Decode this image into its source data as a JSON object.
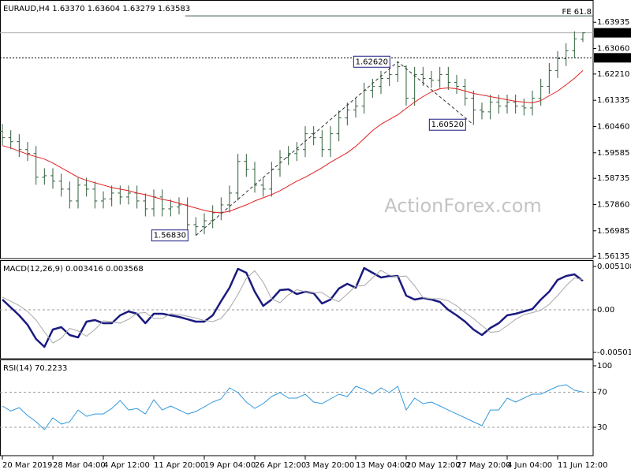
{
  "chart_data": [
    {
      "type": "ohlc",
      "title": "EURAUD,H4  1.63370 1.63604 1.63279 1.63583",
      "watermark": "ActionForex.com",
      "color": "#2f5f3a",
      "categories": [
        "20 Mar 2019",
        null,
        null,
        null,
        null,
        null,
        "28 Mar 04:00",
        null,
        null,
        null,
        null,
        null,
        "4 Apr 12:00",
        null,
        null,
        null,
        null,
        null,
        "11 Apr 20:00",
        null,
        null,
        null,
        null,
        null,
        "19 Apr 04:00",
        null,
        null,
        null,
        null,
        null,
        "26 Apr 12:00",
        null,
        null,
        null,
        null,
        null,
        "3 May 20:00",
        null,
        null,
        null,
        null,
        null,
        "13 May 04:00",
        null,
        null,
        null,
        null,
        null,
        "20 May 12:00",
        null,
        null,
        null,
        null,
        null,
        "27 May 20:00",
        null,
        null,
        null,
        null,
        null,
        "4 Jun 04:00",
        null,
        null,
        null,
        null,
        null,
        "11 Jun 12:00",
        null,
        null,
        null
      ],
      "open": [
        1.603,
        1.60088,
        1.59956,
        1.59693,
        1.59561,
        1.5877,
        1.5882,
        1.58639,
        1.58375,
        1.5798,
        1.58507,
        1.58375,
        1.5798,
        1.5805,
        1.58243,
        1.58112,
        1.58243,
        1.5798,
        1.57716,
        1.58112,
        1.57716,
        1.5778,
        1.57848,
        1.57189,
        1.5712,
        1.57321,
        1.57585,
        1.57848,
        1.58243,
        1.59297,
        1.59034,
        1.58507,
        1.58375,
        1.59034,
        1.59429,
        1.59561,
        1.59693,
        1.6022,
        1.60088,
        1.59693,
        1.6022,
        1.60747,
        1.6101,
        1.61142,
        1.61669,
        1.61801,
        1.62064,
        1.62196,
        1.62459,
        1.61405,
        1.62196,
        1.62064,
        1.62,
        1.62196,
        1.61932,
        1.61801,
        1.61405,
        1.6101,
        1.6095,
        1.61274,
        1.61142,
        1.61274,
        1.61142,
        1.6108,
        1.61405,
        1.61801,
        1.62328,
        1.62723,
        1.62986,
        1.6337
      ],
      "high": [
        1.6055,
        1.60338,
        1.60206,
        1.59943,
        1.59811,
        1.5907,
        1.5907,
        1.58889,
        1.58625,
        1.58757,
        1.58757,
        1.58625,
        1.583,
        1.58493,
        1.58493,
        1.58493,
        1.58493,
        1.5823,
        1.58362,
        1.58362,
        1.5803,
        1.58098,
        1.58098,
        1.57439,
        1.57571,
        1.57835,
        1.58098,
        1.58493,
        1.59547,
        1.59547,
        1.59284,
        1.58757,
        1.59284,
        1.59679,
        1.59811,
        1.59943,
        1.6047,
        1.6047,
        1.60338,
        1.6047,
        1.60997,
        1.6126,
        1.61392,
        1.61919,
        1.62051,
        1.62314,
        1.62446,
        1.6262,
        1.625,
        1.62446,
        1.62446,
        1.62314,
        1.62446,
        1.62446,
        1.62182,
        1.62051,
        1.61655,
        1.6126,
        1.61524,
        1.61524,
        1.61524,
        1.61524,
        1.61392,
        1.61655,
        1.62051,
        1.62578,
        1.62973,
        1.63236,
        1.63632,
        1.63604
      ],
      "low": [
        1.59838,
        1.59706,
        1.59443,
        1.59311,
        1.5852,
        1.5852,
        1.58389,
        1.58125,
        1.5773,
        1.5773,
        1.58125,
        1.5773,
        1.5773,
        1.578,
        1.57862,
        1.57862,
        1.5773,
        1.57466,
        1.57466,
        1.57466,
        1.57466,
        1.5753,
        1.56939,
        1.5683,
        1.5687,
        1.57071,
        1.57335,
        1.57598,
        1.57993,
        1.58784,
        1.58257,
        1.58125,
        1.58125,
        1.58784,
        1.59179,
        1.59311,
        1.59443,
        1.59838,
        1.59443,
        1.59443,
        1.5997,
        1.60497,
        1.6076,
        1.60892,
        1.61419,
        1.61551,
        1.61814,
        1.61946,
        1.61155,
        1.61155,
        1.61814,
        1.6175,
        1.6175,
        1.61682,
        1.61551,
        1.61155,
        1.6052,
        1.607,
        1.607,
        1.60892,
        1.60892,
        1.60892,
        1.6083,
        1.6083,
        1.61155,
        1.61551,
        1.62078,
        1.62473,
        1.62736,
        1.63279
      ],
      "close": [
        1.60088,
        1.59956,
        1.59693,
        1.59561,
        1.5877,
        1.5882,
        1.58639,
        1.58375,
        1.5798,
        1.58507,
        1.58375,
        1.5798,
        1.5805,
        1.58243,
        1.58112,
        1.58243,
        1.5798,
        1.57716,
        1.58112,
        1.57716,
        1.5778,
        1.57848,
        1.57189,
        1.5712,
        1.57321,
        1.57585,
        1.57848,
        1.58243,
        1.59297,
        1.59034,
        1.58507,
        1.58375,
        1.59034,
        1.59429,
        1.59561,
        1.59693,
        1.6022,
        1.60088,
        1.59693,
        1.6022,
        1.60747,
        1.6101,
        1.61142,
        1.61669,
        1.61801,
        1.62064,
        1.62196,
        1.62459,
        1.61405,
        1.62196,
        1.62064,
        1.62,
        1.62196,
        1.61932,
        1.61801,
        1.61405,
        1.6101,
        1.6095,
        1.61274,
        1.61142,
        1.61274,
        1.61142,
        1.6108,
        1.61405,
        1.61801,
        1.62328,
        1.62723,
        1.62986,
        1.63382,
        1.63583
      ],
      "overlays": [
        {
          "color": "#e02020",
          "values": [
            1.59824,
            1.59745,
            1.5964,
            1.59535,
            1.59456,
            1.59376,
            1.59245,
            1.59087,
            1.58929,
            1.5877,
            1.58665,
            1.58586,
            1.58507,
            1.58428,
            1.58375,
            1.58322,
            1.58243,
            1.58191,
            1.58112,
            1.58033,
            1.5798,
            1.57901,
            1.57822,
            1.57743,
            1.57664,
            1.57611,
            1.57585,
            1.57637,
            1.57743,
            1.57848,
            1.5798,
            1.58085,
            1.58191,
            1.58322,
            1.58481,
            1.58639,
            1.5877,
            1.58929,
            1.59087,
            1.59271,
            1.59429,
            1.59587,
            1.59798,
            1.60062,
            1.60325,
            1.60536,
            1.60694,
            1.60852,
            1.61063,
            1.61274,
            1.61458,
            1.61616,
            1.61722,
            1.61748,
            1.61722,
            1.61643,
            1.61564,
            1.61511,
            1.61458,
            1.61405,
            1.61353,
            1.613,
            1.61274,
            1.61247,
            1.61326,
            1.61484,
            1.61643,
            1.61853,
            1.62064,
            1.62328
          ]
        }
      ],
      "ylim": [
        1.5606,
        1.6465
      ],
      "yticks": [
        1.63935,
        {
          "value": 1.6306,
          "label": "1.63060"
        },
        {
          "value": 1.6221,
          "label": "1.62210"
        },
        1.61335,
        {
          "value": 1.6046,
          "label": "1.60460"
        },
        1.59585,
        1.58735,
        {
          "value": 1.5786,
          "label": "1.57860"
        },
        1.56985,
        1.56135
      ],
      "levels": [
        {
          "label": "FE 61.8",
          "value": 1.64146,
          "style": "fe"
        },
        {
          "label": "1.63583",
          "value": 1.63583,
          "style": "bid"
        },
        {
          "label": "1.62750",
          "value": 1.6275,
          "style": "dotted"
        }
      ],
      "callouts": [
        {
          "text": "1.56830",
          "value": 1.5683,
          "index": 23
        },
        {
          "text": "1.62620",
          "value": 1.6262,
          "index": 47
        },
        {
          "text": "1.60520",
          "value": 1.6052,
          "index": 56
        }
      ]
    },
    {
      "type": "line",
      "title": "MACD(12,26,9) 0.003416 0.003568",
      "series": [
        {
          "color": "#1a1a80",
          "width": 2.5,
          "values": [
            0.00121,
            0.00028,
            -0.00065,
            -0.00177,
            -0.00344,
            -0.00437,
            -0.00232,
            -0.00204,
            -0.00297,
            -0.00325,
            -0.00139,
            -0.00121,
            -0.00158,
            -0.00158,
            -0.00065,
            -0.00019,
            -0.00046,
            -0.00158,
            -0.00046,
            -0.00046,
            -0.00065,
            -0.00084,
            -0.00111,
            -0.00139,
            -0.00139,
            -0.00065,
            0.00102,
            0.0026,
            0.00483,
            0.00437,
            0.00214,
            0.00046,
            0.00121,
            0.00232,
            0.00242,
            0.00186,
            0.00214,
            0.00195,
            0.00074,
            0.00121,
            0.00251,
            0.00307,
            0.0026,
            0.00492,
            0.00437,
            0.00381,
            0.00399,
            0.00399,
            0.00167,
            0.00121,
            0.00139,
            0.00121,
            0.00093,
            0,
            -0.00065,
            -0.00139,
            -0.00232,
            -0.00297,
            -0.00214,
            -0.00158,
            -0.00065,
            -0.00046,
            -0.00019,
            9e-05,
            0.00121,
            0.00214,
            0.00353,
            0.00399,
            0.00418,
            0.003416
          ]
        },
        {
          "color": "#a8a8a8",
          "width": 1,
          "values": [
            0.0015,
            0.001,
            0.0005,
            -0.0002,
            -0.0012,
            -0.0026,
            -0.0039,
            -0.00335,
            -0.00218,
            -0.0025,
            -0.00311,
            -0.00232,
            -0.0013,
            -0.0014,
            -0.00158,
            -0.00112,
            -0.00042,
            -0.00032,
            -0.00102,
            -0.00102,
            -0.00046,
            -0.00056,
            -0.00075,
            -0.00098,
            -0.00125,
            -0.00139,
            -0.00102,
            0.00019,
            0.00181,
            0.00372,
            0.0046,
            0.00326,
            0.0013,
            0.00084,
            0.00177,
            0.00237,
            0.00214,
            0.002,
            0.00205,
            0.00135,
            0.00098,
            0.00186,
            0.00279,
            0.00284,
            0.00376,
            0.00465,
            0.00409,
            0.0039,
            0.00399,
            0.00283,
            0.00144,
            0.0013,
            0.0013,
            0.00107,
            0.00047,
            -0.00033,
            -0.00102,
            -0.00186,
            -0.00265,
            -0.00256,
            -0.00186,
            -0.00112,
            -0.00056,
            -0.00033,
            -5e-05,
            0.00065,
            0.00168,
            0.00284,
            0.00376,
            0.003568
          ]
        }
      ],
      "ylim": [
        -0.00576,
        0.00576
      ],
      "yticks": [
        0.005108,
        {
          "value": 0,
          "label": "0.00"
        },
        -0.005019
      ],
      "levels": [
        0
      ]
    },
    {
      "type": "line",
      "title": "RSI(14) 70.2233",
      "series": [
        {
          "color": "#3399dd",
          "width": 1,
          "values": [
            54.2,
            48.5,
            52.4,
            43.4,
            36.3,
            27.3,
            40.8,
            33.6,
            36.3,
            49.7,
            42.5,
            45.2,
            45.2,
            51.5,
            60.5,
            49.7,
            51.5,
            45.2,
            61.4,
            49.7,
            54.2,
            49.7,
            45.2,
            47.9,
            53.3,
            58.7,
            62.3,
            74.9,
            69.5,
            58.7,
            51.5,
            56.9,
            65.0,
            69.5,
            63.2,
            63.2,
            67.7,
            58.7,
            56.9,
            62.3,
            67.7,
            65.0,
            76.7,
            73.1,
            67.7,
            74.9,
            69.5,
            76.7,
            49.7,
            63.2,
            56.9,
            58.7,
            54.2,
            49.7,
            45.2,
            40.8,
            36.3,
            31.8,
            49.7,
            49.7,
            63.2,
            58.7,
            63.2,
            67.7,
            67.7,
            72.2,
            76.7,
            78.5,
            72.2,
            70.2233
          ]
        }
      ],
      "ylim": [
        -2.3,
        106.3
      ],
      "yticks": [
        100,
        70,
        30
      ],
      "levels": [
        70,
        30
      ]
    }
  ]
}
